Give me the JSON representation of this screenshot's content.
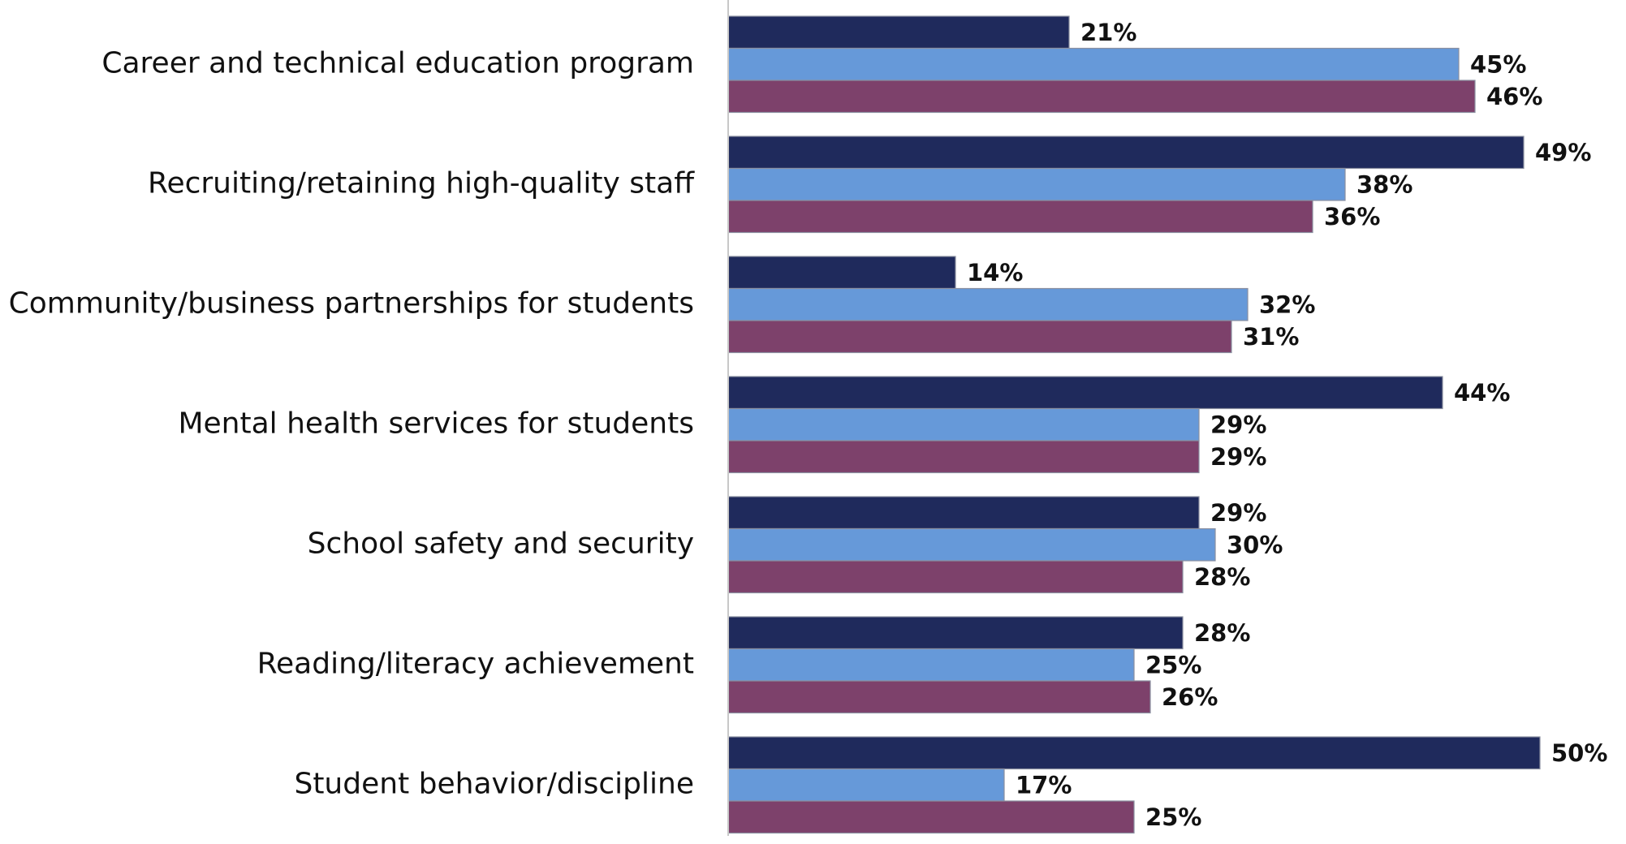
{
  "chart_data": {
    "type": "bar",
    "orientation": "horizontal",
    "categories": [
      "Career and technical education program",
      "Recruiting/retaining high-quality staff",
      "Community/business partnerships for students",
      "Mental health services for students",
      "School safety and security",
      "Reading/literacy achievement",
      "Student behavior/discipline"
    ],
    "series": [
      {
        "color": "#1f2a5c",
        "values": [
          21,
          49,
          14,
          44,
          29,
          28,
          50
        ],
        "value_labels": [
          "21%",
          "49%",
          "14%",
          "44%",
          "29%",
          "28%",
          "50%"
        ]
      },
      {
        "color": "#6699d9",
        "values": [
          45,
          38,
          32,
          29,
          30,
          25,
          17
        ],
        "value_labels": [
          "45%",
          "38%",
          "32%",
          "29%",
          "30%",
          "25%",
          "17%"
        ]
      },
      {
        "color": "#7d416b",
        "values": [
          46,
          36,
          31,
          29,
          28,
          26,
          25
        ],
        "value_labels": [
          "46%",
          "36%",
          "31%",
          "29%",
          "28%",
          "26%",
          "25%"
        ]
      }
    ],
    "xlim": [
      0,
      55
    ]
  }
}
